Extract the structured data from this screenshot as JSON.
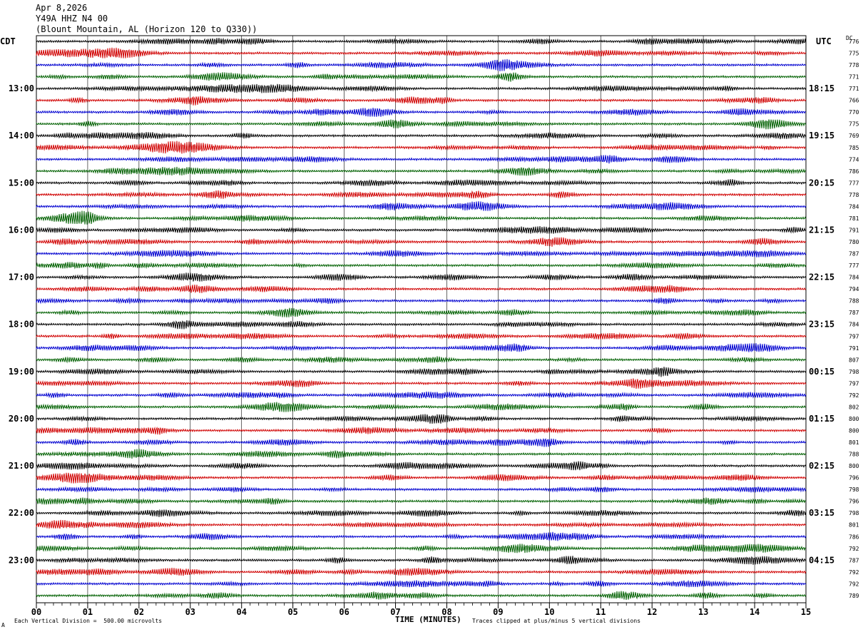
{
  "header": {
    "date": "Apr 8,2026",
    "station": "Y49A HHZ N4 00",
    "location": "(Blount Mountain, AL (Horizon 120 to Q330))"
  },
  "left_tz": "CDT",
  "right_tz": "UTC",
  "dc_label": "DC",
  "footer": {
    "division": "Each Vertical Division =  500.00 microvolts",
    "clip": "Traces clipped at plus/minus 5 vertical divisions",
    "corner": "A"
  },
  "colors": {
    "trace_cycle": [
      "#000000",
      "#d00000",
      "#0000d0",
      "#006000"
    ],
    "grid": "#000000"
  },
  "chart_data": {
    "type": "line",
    "xlabel": "TIME (MINUTES)",
    "xlim": [
      0,
      15
    ],
    "x_ticks": [
      "00",
      "01",
      "02",
      "03",
      "04",
      "05",
      "06",
      "07",
      "08",
      "09",
      "10",
      "11",
      "12",
      "13",
      "14",
      "15"
    ],
    "left_hour_labels": [
      "13:00",
      "14:00",
      "15:00",
      "16:00",
      "17:00",
      "18:00",
      "19:00",
      "20:00",
      "21:00",
      "22:00",
      "23:00"
    ],
    "right_hour_labels": [
      "18:15",
      "19:15",
      "20:15",
      "21:15",
      "22:15",
      "23:15",
      "00:15",
      "01:15",
      "02:15",
      "03:15",
      "04:15"
    ],
    "trace_dc_values": [
      "776",
      "775",
      "778",
      "771",
      "771",
      "766",
      "770",
      "775",
      "769",
      "785",
      "774",
      "786",
      "777",
      "778",
      "784",
      "781",
      "791",
      "780",
      "787",
      "777",
      "784",
      "794",
      "788",
      "787",
      "784",
      "797",
      "791",
      "807",
      "798",
      "797",
      "792",
      "802",
      "800",
      "800",
      "801",
      "788",
      "800",
      "796",
      "798",
      "796",
      "798",
      "801",
      "786",
      "792",
      "787",
      "792",
      "792",
      "789"
    ],
    "traces_per_hour": 4,
    "minutes_per_trace": 15
  }
}
